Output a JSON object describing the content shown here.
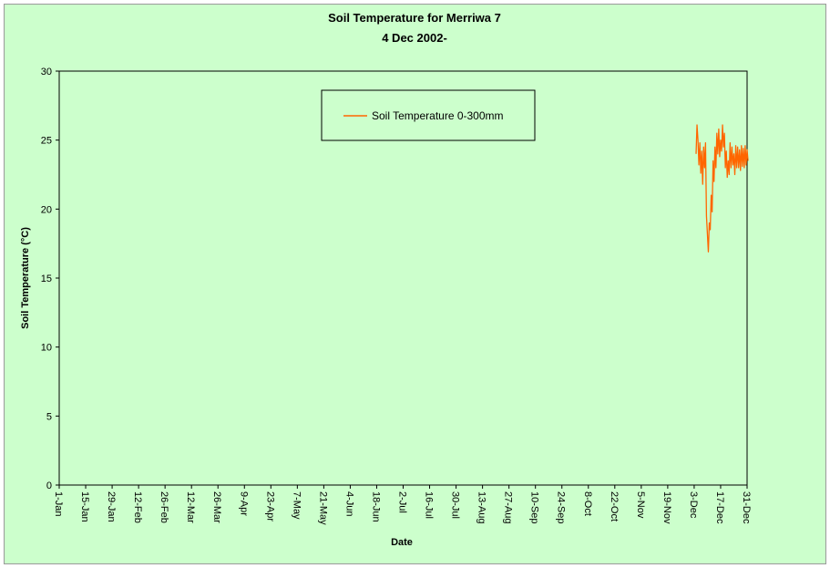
{
  "chart_data": {
    "type": "line",
    "title": "Soil Temperature for Merriwa 7",
    "subtitle": "4 Dec 2002-",
    "xlabel": "Date",
    "ylabel": "Soil Temperature (°C)",
    "ylim": [
      0,
      30
    ],
    "yticks": [
      "0",
      "5",
      "10",
      "15",
      "20",
      "25",
      "30"
    ],
    "xlim_days": [
      1,
      365
    ],
    "xticks": [
      "1-Jan",
      "15-Jan",
      "29-Jan",
      "12-Feb",
      "26-Feb",
      "12-Mar",
      "26-Mar",
      "9-Apr",
      "23-Apr",
      "7-May",
      "21-May",
      "4-Jun",
      "18-Jun",
      "2-Jul",
      "16-Jul",
      "30-Jul",
      "13-Aug",
      "27-Aug",
      "10-Sep",
      "24-Sep",
      "8-Oct",
      "22-Oct",
      "5-Nov",
      "19-Nov",
      "3-Dec",
      "17-Dec",
      "31-Dec"
    ],
    "grid": false,
    "legend_position": "top-center",
    "series": [
      {
        "name": "Soil Temperature  0-300mm",
        "color": "#ff6600",
        "x_label_fmt": "day-of-year",
        "points": [
          [
            "4-Dec",
            24.0
          ],
          [
            "4-Dec",
            26.1
          ],
          [
            "5-Dec",
            25.0
          ],
          [
            "5-Dec",
            23.2
          ],
          [
            "6-Dec",
            24.8
          ],
          [
            "6-Dec",
            22.6
          ],
          [
            "7-Dec",
            24.2
          ],
          [
            "7-Dec",
            21.8
          ],
          [
            "8-Dec",
            24.5
          ],
          [
            "8-Dec",
            23.0
          ],
          [
            "9-Dec",
            24.8
          ],
          [
            "9-Dec",
            19.5
          ],
          [
            "10-Dec",
            18.2
          ],
          [
            "10-Dec",
            16.9
          ],
          [
            "11-Dec",
            19.0
          ],
          [
            "11-Dec",
            18.5
          ],
          [
            "12-Dec",
            21.0
          ],
          [
            "12-Dec",
            19.8
          ],
          [
            "13-Dec",
            23.5
          ],
          [
            "13-Dec",
            22.0
          ],
          [
            "14-Dec",
            24.5
          ],
          [
            "14-Dec",
            23.0
          ],
          [
            "15-Dec",
            25.5
          ],
          [
            "15-Dec",
            24.0
          ],
          [
            "16-Dec",
            25.8
          ],
          [
            "16-Dec",
            23.8
          ],
          [
            "17-Dec",
            25.0
          ],
          [
            "17-Dec",
            24.2
          ],
          [
            "18-Dec",
            26.1
          ],
          [
            "18-Dec",
            24.5
          ],
          [
            "19-Dec",
            25.5
          ],
          [
            "19-Dec",
            23.0
          ],
          [
            "20-Dec",
            24.2
          ],
          [
            "20-Dec",
            22.3
          ],
          [
            "21-Dec",
            23.5
          ],
          [
            "21-Dec",
            22.5
          ],
          [
            "22-Dec",
            24.8
          ],
          [
            "22-Dec",
            23.0
          ],
          [
            "23-Dec",
            24.5
          ],
          [
            "23-Dec",
            23.2
          ],
          [
            "24-Dec",
            24.0
          ],
          [
            "24-Dec",
            22.5
          ],
          [
            "25-Dec",
            24.6
          ],
          [
            "25-Dec",
            23.0
          ],
          [
            "26-Dec",
            24.5
          ],
          [
            "26-Dec",
            23.0
          ],
          [
            "27-Dec",
            24.3
          ],
          [
            "27-Dec",
            22.8
          ],
          [
            "28-Dec",
            24.6
          ],
          [
            "28-Dec",
            23.1
          ],
          [
            "29-Dec",
            24.4
          ],
          [
            "29-Dec",
            23.0
          ],
          [
            "30-Dec",
            24.6
          ],
          [
            "30-Dec",
            23.2
          ],
          [
            "31-Dec",
            24.3
          ],
          [
            "31-Dec",
            23.5
          ]
        ]
      }
    ]
  }
}
